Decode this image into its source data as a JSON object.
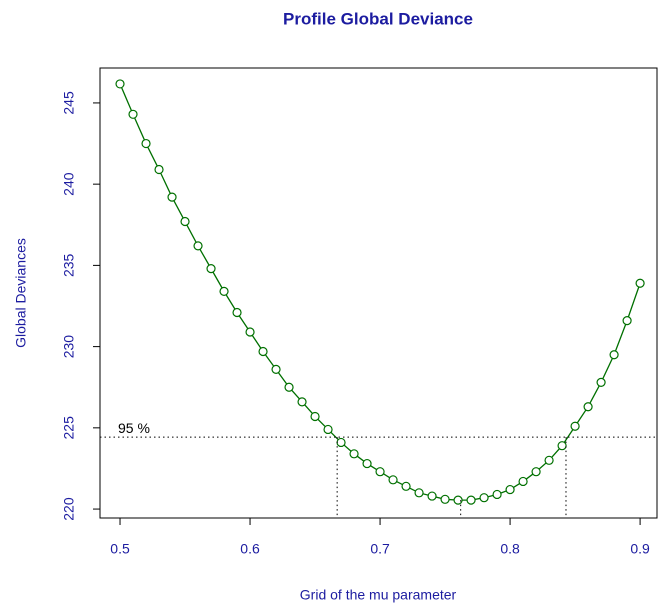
{
  "chart_data": {
    "type": "line",
    "title": "Profile Global Deviance",
    "x_label": "Grid of the mu parameter",
    "y_label": "Global Deviances",
    "x": [
      0.5,
      0.51,
      0.52,
      0.53,
      0.54,
      0.55,
      0.56,
      0.57,
      0.58,
      0.59,
      0.6,
      0.61,
      0.62,
      0.63,
      0.64,
      0.65,
      0.66,
      0.67,
      0.68,
      0.69,
      0.7,
      0.71,
      0.72,
      0.73,
      0.74,
      0.75,
      0.76,
      0.77,
      0.78,
      0.79,
      0.8,
      0.81,
      0.82,
      0.83,
      0.84,
      0.85,
      0.86,
      0.87,
      0.88,
      0.89,
      0.9
    ],
    "series": [
      {
        "color": "#007000",
        "values": [
          246.17,
          244.3,
          242.5,
          240.9,
          239.2,
          237.7,
          236.2,
          234.8,
          233.4,
          232.1,
          230.9,
          229.7,
          228.6,
          227.5,
          226.6,
          225.7,
          224.9,
          224.1,
          223.4,
          222.8,
          222.3,
          221.8,
          221.4,
          221.0,
          220.8,
          220.6,
          220.55,
          220.55,
          220.7,
          220.9,
          221.2,
          221.7,
          222.3,
          223.0,
          223.9,
          225.1,
          226.3,
          227.8,
          229.5,
          231.6,
          233.9
        ]
      }
    ],
    "reference_level": {
      "label": "95 %",
      "value": 224.43
    },
    "ci_x": [
      0.667,
      0.843
    ],
    "mle_x": 0.762,
    "xlim": [
      0.4846,
      0.913
    ],
    "ylim": [
      219.45,
      247.15
    ],
    "xticks": [
      0.5,
      0.6,
      0.7,
      0.8,
      0.9
    ],
    "yticks": [
      220,
      225,
      230,
      235,
      240,
      245
    ]
  }
}
